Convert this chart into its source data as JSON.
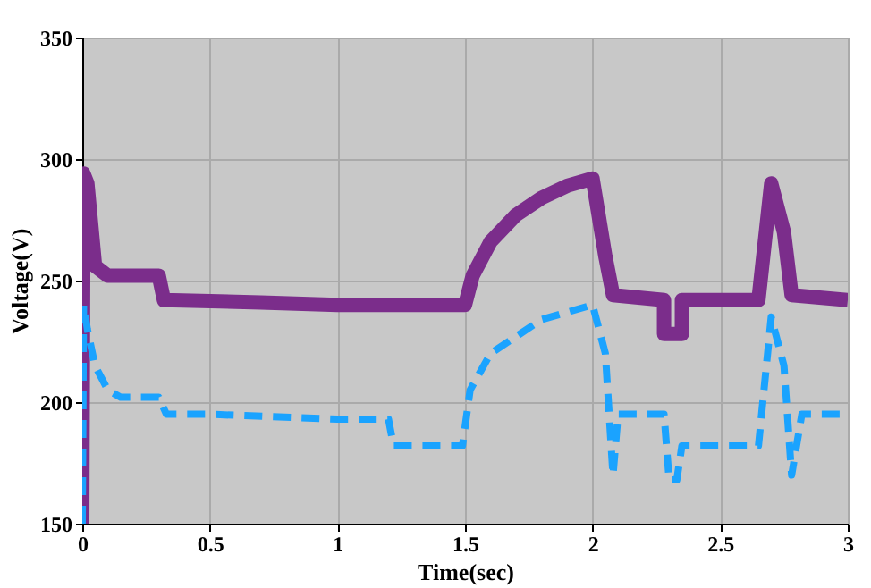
{
  "chart_data": {
    "type": "line",
    "xlabel": "Time(sec)",
    "ylabel": "Voltage(V)",
    "xlim": [
      0,
      3
    ],
    "ylim": [
      150,
      350
    ],
    "xticks": [
      0,
      0.5,
      1,
      1.5,
      2,
      2.5,
      3
    ],
    "yticks": [
      150,
      200,
      250,
      300,
      350
    ],
    "grid": true,
    "series": [
      {
        "color": "#7b2d8b",
        "line_style": "solid",
        "x": [
          0,
          0.005,
          0.02,
          0.05,
          0.1,
          0.3,
          0.32,
          0.7,
          1.0,
          1.5,
          1.53,
          1.6,
          1.7,
          1.8,
          1.9,
          2.0,
          2.05,
          2.08,
          2.28,
          2.28,
          2.35,
          2.35,
          2.65,
          2.7,
          2.75,
          2.78,
          3.0
        ],
        "values": [
          150,
          294,
          290,
          256,
          252,
          252,
          242,
          241,
          240,
          240,
          252,
          266,
          277,
          284,
          289,
          292,
          260,
          244,
          242,
          228,
          228,
          242,
          242,
          290,
          270,
          244,
          242
        ]
      },
      {
        "color": "#1aa3ff",
        "line_style": "dashed",
        "x": [
          0,
          0.005,
          0.02,
          0.05,
          0.1,
          0.15,
          0.3,
          0.33,
          0.5,
          1.0,
          1.2,
          1.22,
          1.49,
          1.52,
          1.6,
          1.8,
          2.0,
          2.05,
          2.08,
          2.1,
          2.28,
          2.3,
          2.33,
          2.35,
          2.65,
          2.7,
          2.75,
          2.78,
          2.82,
          3.0
        ],
        "values": [
          150,
          240,
          230,
          215,
          205,
          202,
          202,
          195,
          195,
          193,
          193,
          182,
          182,
          205,
          220,
          234,
          240,
          220,
          170,
          195,
          195,
          168,
          168,
          182,
          182,
          235,
          215,
          170,
          195,
          195
        ]
      }
    ]
  }
}
